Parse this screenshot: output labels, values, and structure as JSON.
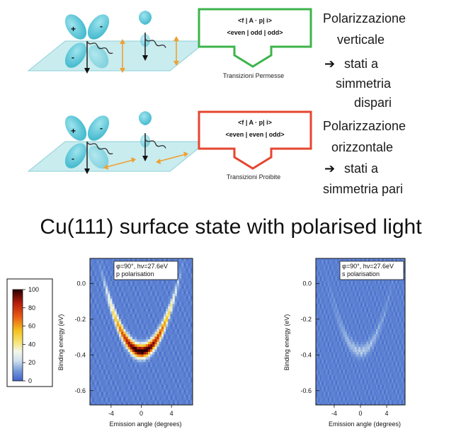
{
  "top": {
    "row1": {
      "matrix_line1": "<f | A · p| i>",
      "matrix_line2": "<even | odd | odd>",
      "caption": "Transizioni Permesse",
      "side_lines": [
        "Polarizzazione",
        "verticale",
        "stati a",
        "simmetria",
        "dispari"
      ],
      "orbital_signs": [
        "+",
        "-",
        "-",
        "+"
      ],
      "arrow_color": "#3cb44b"
    },
    "row2": {
      "matrix_line1": "<f | A · p| i>",
      "matrix_line2": "<even | even | odd>",
      "caption": "Transizioni Proibite",
      "side_lines": [
        "Polarizzazione",
        "orizzontale",
        "stati a",
        "simmetria pari"
      ],
      "orbital_signs": [
        "+",
        "-",
        "-",
        "+"
      ],
      "arrow_color": "#e5452f"
    }
  },
  "title": "Cu(111) surface state with polarised light",
  "colorbar": {
    "ticks": [
      "100",
      "80",
      "60",
      "40",
      "20",
      "0"
    ]
  },
  "chart_data": [
    {
      "type": "heatmap",
      "annotation_line1": "φ=90°, hν=27.6eV",
      "annotation_line2": "p polarisation",
      "xlabel": "Emission angle (degrees)",
      "ylabel": "Binding energy (eV)",
      "xticks": [
        "-4",
        "0",
        "4"
      ],
      "yticks": [
        "0.0",
        "-0.2",
        "-0.4",
        "-0.6"
      ],
      "xlim": [
        -6.8,
        6.8
      ],
      "ylim": [
        -0.68,
        0.14
      ],
      "band_min_energy": -0.38,
      "band_curvature": 0.016,
      "peak_intensity": 100,
      "color_range": [
        0,
        100
      ]
    },
    {
      "type": "heatmap",
      "annotation_line1": "φ=90°, hν=27.6eV",
      "annotation_line2": "s polarisation",
      "xlabel": "Emission angle (degrees)",
      "ylabel": "Binding energy (eV)",
      "xticks": [
        "-4",
        "0",
        "4"
      ],
      "yticks": [
        "0.0",
        "-0.2",
        "-0.4",
        "-0.6"
      ],
      "xlim": [
        -6.8,
        6.8
      ],
      "ylim": [
        -0.68,
        0.14
      ],
      "band_min_energy": -0.38,
      "band_curvature": 0.016,
      "peak_intensity": 12,
      "color_range": [
        0,
        100
      ]
    }
  ]
}
